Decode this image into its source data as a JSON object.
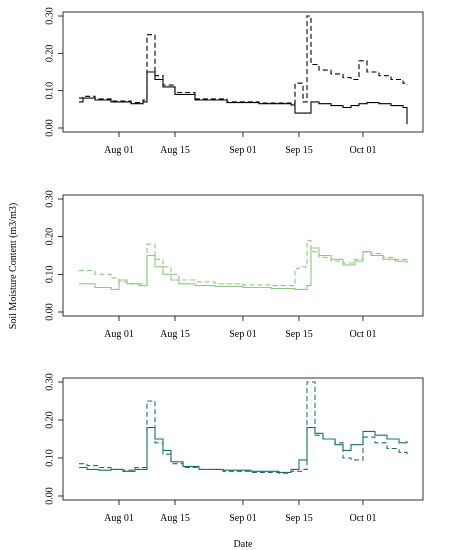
{
  "figure": {
    "ylabel": "Soil Moisture Content (m3/m3)",
    "xlabel": "Date"
  },
  "chart_data": [
    {
      "type": "line",
      "xlim": [
        "2014-07-19",
        "2014-10-15"
      ],
      "ylim": [
        0,
        0.3
      ],
      "x_ticks": [
        "2014-08-01",
        "2014-08-15",
        "2014-09-01",
        "2014-09-15",
        "2014-10-01"
      ],
      "x_tick_labels": [
        "Aug 01",
        "Aug 15",
        "Sep 01",
        "Sep 15",
        "Oct 01"
      ],
      "y_ticks": [
        0.0,
        0.1,
        0.2,
        0.3
      ],
      "y_tick_labels": [
        "0.00",
        "0.10",
        "0.20",
        "0.30"
      ],
      "series": [
        {
          "color": "#000000",
          "dash": "solid",
          "x": [
            "2014-07-22",
            "2014-07-23",
            "2014-07-26",
            "2014-07-30",
            "2014-08-04",
            "2014-08-07",
            "2014-08-08",
            "2014-08-10",
            "2014-08-12",
            "2014-08-15",
            "2014-08-20",
            "2014-08-28",
            "2014-09-05",
            "2014-09-13",
            "2014-09-14",
            "2014-09-15",
            "2014-09-17",
            "2014-09-18",
            "2014-09-20",
            "2014-09-23",
            "2014-09-26",
            "2014-09-28",
            "2014-09-30",
            "2014-10-02",
            "2014-10-05",
            "2014-10-08",
            "2014-10-11",
            "2014-10-12"
          ],
          "y": [
            0.07,
            0.08,
            0.075,
            0.07,
            0.065,
            0.07,
            0.15,
            0.13,
            0.11,
            0.09,
            0.075,
            0.068,
            0.065,
            0.062,
            0.04,
            0.04,
            0.04,
            0.07,
            0.065,
            0.06,
            0.055,
            0.06,
            0.065,
            0.068,
            0.065,
            0.06,
            0.055,
            0.01
          ]
        },
        {
          "color": "#000000",
          "dash": "dashed",
          "x": [
            "2014-07-22",
            "2014-07-23",
            "2014-07-26",
            "2014-07-30",
            "2014-08-04",
            "2014-08-07",
            "2014-08-08",
            "2014-08-10",
            "2014-08-12",
            "2014-08-15",
            "2014-08-20",
            "2014-08-28",
            "2014-09-05",
            "2014-09-13",
            "2014-09-14",
            "2014-09-16",
            "2014-09-17",
            "2014-09-18",
            "2014-09-20",
            "2014-09-23",
            "2014-09-26",
            "2014-09-28",
            "2014-09-30",
            "2014-10-02",
            "2014-10-05",
            "2014-10-08",
            "2014-10-11",
            "2014-10-12"
          ],
          "y": [
            0.08,
            0.085,
            0.078,
            0.072,
            0.068,
            0.075,
            0.25,
            0.14,
            0.115,
            0.095,
            0.078,
            0.07,
            0.067,
            0.065,
            0.12,
            0.07,
            0.3,
            0.17,
            0.155,
            0.145,
            0.135,
            0.13,
            0.18,
            0.15,
            0.14,
            0.13,
            0.12,
            0.115
          ]
        }
      ]
    },
    {
      "type": "line",
      "xlim": [
        "2014-07-19",
        "2014-10-15"
      ],
      "ylim": [
        0,
        0.3
      ],
      "x_ticks": [
        "2014-08-01",
        "2014-08-15",
        "2014-09-01",
        "2014-09-15",
        "2014-10-01"
      ],
      "x_tick_labels": [
        "Aug 01",
        "Aug 15",
        "Sep 01",
        "Sep 15",
        "Oct 01"
      ],
      "y_ticks": [
        0.0,
        0.1,
        0.2,
        0.3
      ],
      "y_tick_labels": [
        "0.00",
        "0.10",
        "0.20",
        "0.30"
      ],
      "series": [
        {
          "color": "#8cc97f",
          "dash": "solid",
          "x": [
            "2014-07-22",
            "2014-07-26",
            "2014-07-30",
            "2014-08-01",
            "2014-08-03",
            "2014-08-06",
            "2014-08-08",
            "2014-08-10",
            "2014-08-12",
            "2014-08-14",
            "2014-08-16",
            "2014-08-20",
            "2014-08-25",
            "2014-09-01",
            "2014-09-08",
            "2014-09-14",
            "2014-09-17",
            "2014-09-18",
            "2014-09-20",
            "2014-09-23",
            "2014-09-26",
            "2014-09-29",
            "2014-10-01",
            "2014-10-03",
            "2014-10-06",
            "2014-10-09",
            "2014-10-12"
          ],
          "y": [
            0.075,
            0.065,
            0.06,
            0.085,
            0.075,
            0.07,
            0.15,
            0.12,
            0.1,
            0.085,
            0.075,
            0.07,
            0.068,
            0.065,
            0.062,
            0.06,
            0.07,
            0.17,
            0.15,
            0.14,
            0.125,
            0.135,
            0.16,
            0.15,
            0.14,
            0.135,
            0.13
          ]
        },
        {
          "color": "#8cc97f",
          "dash": "dashed",
          "x": [
            "2014-07-22",
            "2014-07-26",
            "2014-07-30",
            "2014-08-01",
            "2014-08-03",
            "2014-08-06",
            "2014-08-08",
            "2014-08-10",
            "2014-08-12",
            "2014-08-14",
            "2014-08-16",
            "2014-08-20",
            "2014-08-25",
            "2014-09-01",
            "2014-09-08",
            "2014-09-14",
            "2014-09-15",
            "2014-09-17",
            "2014-09-18",
            "2014-09-20",
            "2014-09-23",
            "2014-09-26",
            "2014-09-29",
            "2014-10-01",
            "2014-10-03",
            "2014-10-06",
            "2014-10-09",
            "2014-10-12"
          ],
          "y": [
            0.11,
            0.1,
            0.09,
            0.08,
            0.075,
            0.075,
            0.18,
            0.14,
            0.12,
            0.1,
            0.085,
            0.08,
            0.075,
            0.072,
            0.07,
            0.115,
            0.12,
            0.19,
            0.16,
            0.145,
            0.135,
            0.13,
            0.14,
            0.16,
            0.155,
            0.145,
            0.14,
            0.135
          ]
        }
      ]
    },
    {
      "type": "line",
      "xlim": [
        "2014-07-19",
        "2014-10-15"
      ],
      "ylim": [
        0,
        0.3
      ],
      "x_ticks": [
        "2014-08-01",
        "2014-08-15",
        "2014-09-01",
        "2014-09-15",
        "2014-10-01"
      ],
      "x_tick_labels": [
        "Aug 01",
        "Aug 15",
        "Sep 01",
        "Sep 15",
        "Oct 01"
      ],
      "y_ticks": [
        0.0,
        0.1,
        0.2,
        0.3
      ],
      "y_tick_labels": [
        "0.00",
        "0.10",
        "0.20",
        "0.30"
      ],
      "series": [
        {
          "color": "#1d6f6b",
          "dash": "solid",
          "x": [
            "2014-07-22",
            "2014-07-24",
            "2014-07-27",
            "2014-07-30",
            "2014-08-02",
            "2014-08-05",
            "2014-08-08",
            "2014-08-10",
            "2014-08-12",
            "2014-08-14",
            "2014-08-17",
            "2014-08-21",
            "2014-08-27",
            "2014-09-03",
            "2014-09-10",
            "2014-09-13",
            "2014-09-15",
            "2014-09-17",
            "2014-09-19",
            "2014-09-21",
            "2014-09-24",
            "2014-09-26",
            "2014-09-28",
            "2014-10-01",
            "2014-10-04",
            "2014-10-07",
            "2014-10-10",
            "2014-10-12"
          ],
          "y": [
            0.075,
            0.07,
            0.068,
            0.07,
            0.065,
            0.07,
            0.18,
            0.15,
            0.12,
            0.09,
            0.078,
            0.07,
            0.068,
            0.065,
            0.062,
            0.07,
            0.095,
            0.18,
            0.165,
            0.15,
            0.135,
            0.12,
            0.135,
            0.17,
            0.16,
            0.15,
            0.14,
            0.145
          ]
        },
        {
          "color": "#1d6f6b",
          "dash": "dashed",
          "x": [
            "2014-07-22",
            "2014-07-24",
            "2014-07-27",
            "2014-07-30",
            "2014-08-02",
            "2014-08-05",
            "2014-08-08",
            "2014-08-10",
            "2014-08-12",
            "2014-08-14",
            "2014-08-17",
            "2014-08-21",
            "2014-08-27",
            "2014-09-03",
            "2014-09-10",
            "2014-09-13",
            "2014-09-16",
            "2014-09-17",
            "2014-09-19",
            "2014-09-21",
            "2014-09-24",
            "2014-09-26",
            "2014-09-28",
            "2014-10-01",
            "2014-10-04",
            "2014-10-07",
            "2014-10-10",
            "2014-10-12"
          ],
          "y": [
            0.085,
            0.08,
            0.075,
            0.07,
            0.068,
            0.075,
            0.25,
            0.14,
            0.11,
            0.085,
            0.075,
            0.07,
            0.065,
            0.062,
            0.06,
            0.065,
            0.07,
            0.3,
            0.16,
            0.15,
            0.14,
            0.1,
            0.095,
            0.155,
            0.14,
            0.125,
            0.115,
            0.11
          ]
        }
      ]
    }
  ]
}
